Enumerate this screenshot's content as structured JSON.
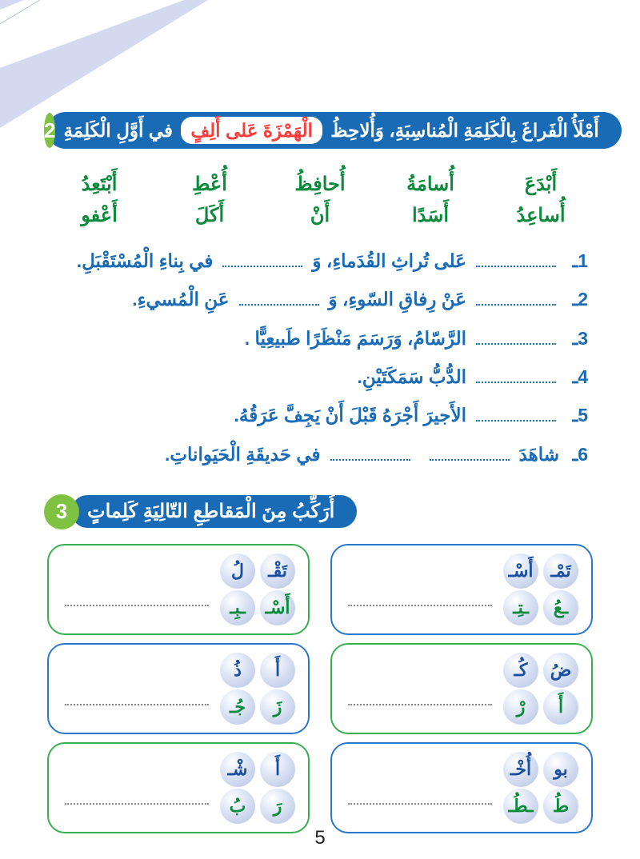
{
  "pageNumber": "5",
  "exercise2": {
    "number": "2",
    "title_p1": "أَمْلَأُ الْفَراغَ بِالْكَلِمَةِ الْمُناسِبَةِ، وَأُلاحِظُ ",
    "title_highlight": "الْهَمْزَةَ عَلى أَلِفٍ",
    "title_p2": " في أَوَّلِ الْكَلِمَةِ",
    "wordBank": [
      "أَبْدَعَ",
      "أُسامَةُ",
      "أُحافِظُ",
      "أُعْطِ",
      "أَبْتَعِدُ",
      "أُساعِدُ",
      "أَسَدًا",
      "أَنْ",
      "أَكَلَ",
      "أَعْفو"
    ],
    "sentences": [
      {
        "num": "1ـ",
        "parts": [
          "",
          "blank",
          " عَلى تُراثِ القُدَماءِ، وَ ",
          "blank",
          " في بِناءِ الْمُسْتَقْبَلِ."
        ]
      },
      {
        "num": "2ـ",
        "parts": [
          "",
          "blank",
          " عَنْ رِفاقِ السّوءِ، وَ ",
          "blank",
          " عَنِ الْمُسيءِ."
        ]
      },
      {
        "num": "3ـ",
        "parts": [
          "",
          "blank",
          " الرَّسّامُ، وَرَسَمَ مَنْظَرًا طَبيعِيًّا ."
        ]
      },
      {
        "num": "4ـ",
        "parts": [
          "",
          "blank",
          " الدُّبُّ سَمَكَتَيْنِ."
        ]
      },
      {
        "num": "5ـ",
        "parts": [
          "",
          "blank",
          " الأَجيرَ أَجْرَهُ قَبْلَ أَنْ يَجِفَّ عَرَقُهُ."
        ]
      },
      {
        "num": "6ـ",
        "parts": [
          "شاهَدَ ",
          "blank",
          " ",
          "blank",
          " في حَديقَةِ الْحَيَواناتِ."
        ]
      }
    ]
  },
  "exercise3": {
    "number": "3",
    "title": "أُرَكِّبُ مِنَ الْمَقاطِعِ التّالِيَةِ كَلِماتٍ",
    "boxes": [
      {
        "color": "blue",
        "syllables": [
          {
            "t": "تَمْـ",
            "c": "blue"
          },
          {
            "t": "أَسْـ",
            "c": "blue"
          },
          {
            "t": "ـعُ",
            "c": "green"
          },
          {
            "t": "ـتِـ",
            "c": "green"
          }
        ]
      },
      {
        "color": "green",
        "syllables": [
          {
            "t": "تَقْـ",
            "c": "blue"
          },
          {
            "t": "لُ",
            "c": "blue"
          },
          {
            "t": "أَسْـ",
            "c": "green"
          },
          {
            "t": "ـبِـ",
            "c": "green"
          }
        ]
      },
      {
        "color": "green",
        "syllables": [
          {
            "t": "ضُ",
            "c": "blue"
          },
          {
            "t": "كُـ",
            "c": "blue"
          },
          {
            "t": "أَ",
            "c": "green"
          },
          {
            "t": "رْ",
            "c": "green"
          }
        ]
      },
      {
        "color": "blue",
        "syllables": [
          {
            "t": "أَ",
            "c": "blue"
          },
          {
            "t": "ذُ",
            "c": "blue"
          },
          {
            "t": "زَ",
            "c": "green"
          },
          {
            "t": "جُـ",
            "c": "green"
          }
        ]
      },
      {
        "color": "blue",
        "syllables": [
          {
            "t": "بو",
            "c": "blue"
          },
          {
            "t": "أُخْـ",
            "c": "blue"
          },
          {
            "t": "طُ",
            "c": "green"
          },
          {
            "t": "ـطُـ",
            "c": "green"
          }
        ]
      },
      {
        "color": "green",
        "syllables": [
          {
            "t": "أَ",
            "c": "blue"
          },
          {
            "t": "شْـ",
            "c": "blue"
          },
          {
            "t": "رَ",
            "c": "green"
          },
          {
            "t": "بُ",
            "c": "green"
          }
        ]
      }
    ]
  },
  "colors": {
    "blue": "#1a6bb5",
    "green": "#7fc241",
    "darkGreen": "#0a8a3a",
    "red": "#ff3a3a",
    "boxBlue": "#2a78cc",
    "boxGreen": "#38b050"
  }
}
